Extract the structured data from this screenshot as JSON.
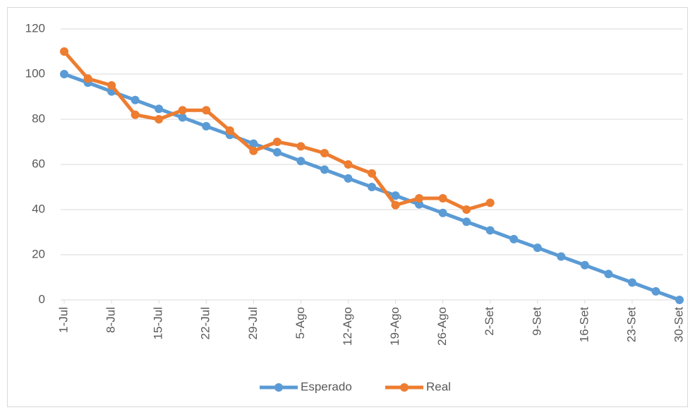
{
  "chart_data": {
    "type": "line",
    "x": [
      0,
      3.5,
      7,
      10.5,
      14,
      17.5,
      21,
      24.5,
      28,
      31.5,
      35,
      38.5,
      42,
      45.5,
      49,
      52.5,
      56,
      59.5,
      63,
      66.5,
      70,
      73.5,
      77,
      80.5,
      84,
      87.5,
      91
    ],
    "series": [
      {
        "name": "Esperado",
        "color": "#5b9bd5",
        "values": [
          100,
          96.2,
          92.3,
          88.5,
          84.6,
          80.8,
          76.9,
          73.1,
          69.2,
          65.4,
          61.5,
          57.7,
          53.8,
          50,
          46.2,
          42.3,
          38.5,
          34.6,
          30.8,
          26.9,
          23.1,
          19.2,
          15.4,
          11.5,
          7.7,
          3.8,
          0
        ]
      },
      {
        "name": "Real",
        "color": "#ed7d31",
        "values": [
          110,
          98,
          95,
          82,
          80,
          84,
          84,
          75,
          66,
          70,
          68,
          65,
          60,
          56,
          42,
          45,
          45,
          40,
          43,
          null,
          null,
          null,
          null,
          null,
          null,
          null,
          null
        ]
      }
    ],
    "xlim": [
      0,
      91
    ],
    "xticks": [
      {
        "value": 0,
        "label": "1-Jul"
      },
      {
        "value": 7,
        "label": "8-Jul"
      },
      {
        "value": 14,
        "label": "15-Jul"
      },
      {
        "value": 21,
        "label": "22-Jul"
      },
      {
        "value": 28,
        "label": "29-Jul"
      },
      {
        "value": 35,
        "label": "5-Ago"
      },
      {
        "value": 42,
        "label": "12-Ago"
      },
      {
        "value": 49,
        "label": "19-Ago"
      },
      {
        "value": 56,
        "label": "26-Ago"
      },
      {
        "value": 63,
        "label": "2-Set"
      },
      {
        "value": 70,
        "label": "9-Set"
      },
      {
        "value": 77,
        "label": "16-Set"
      },
      {
        "value": 84,
        "label": "23-Set"
      },
      {
        "value": 91,
        "label": "30-Set"
      }
    ],
    "ylim": [
      0,
      120
    ],
    "yticks": [
      0,
      20,
      40,
      60,
      80,
      100,
      120
    ],
    "grid": true,
    "legend": "bottom"
  }
}
